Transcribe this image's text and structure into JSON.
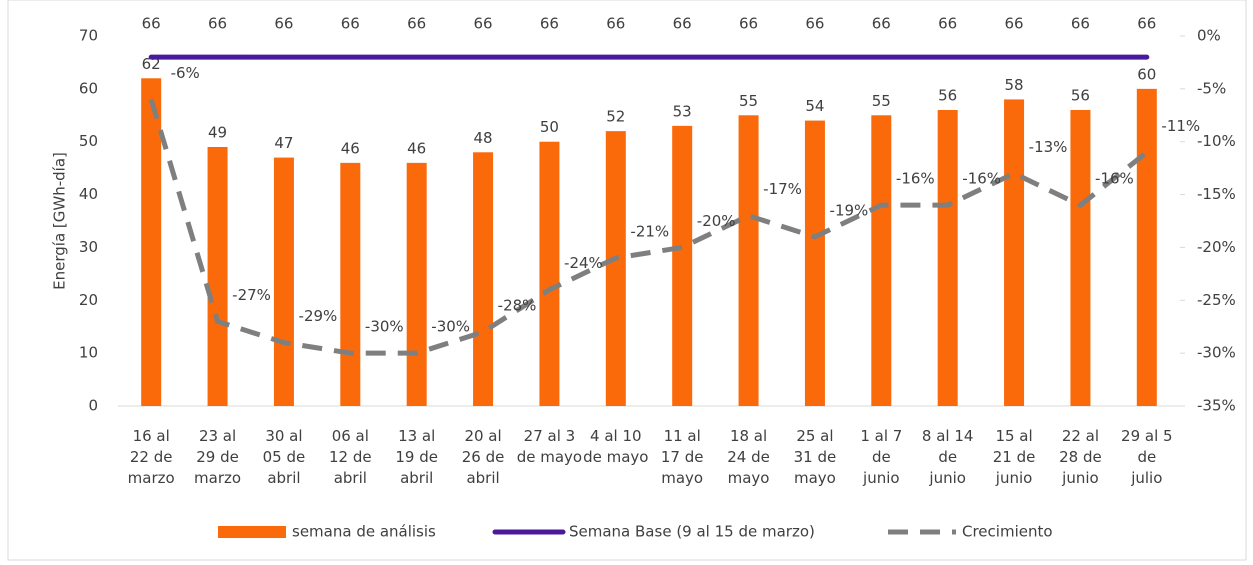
{
  "chart_data": {
    "type": "combo",
    "categories": [
      "16 al 22 de marzo",
      "23 al 29 de marzo",
      "30 al 05 de abril",
      "06 al 12 de abril",
      "13 al 19 de abril",
      "20 al 26 de abril",
      "27 al 3 de mayo",
      "4 al 10 de mayo",
      "11 al 17 de mayo",
      "18 al 24 de mayo",
      "25 al 31 de mayo",
      "1 al 7 de junio",
      "8 al 14 de junio",
      "15 al 21 de junio",
      "22 al 28 de junio",
      "29 al 5 de julio"
    ],
    "ylabel": "Energía [GWh-día]",
    "ylim": [
      0,
      70
    ],
    "yticks": [
      0,
      10,
      20,
      30,
      40,
      50,
      60,
      70
    ],
    "y2lim": [
      -35,
      0
    ],
    "y2ticks": [
      {
        "value": 0,
        "label": "0%"
      },
      {
        "value": -5,
        "label": "-5%"
      },
      {
        "value": -10,
        "label": "-10%"
      },
      {
        "value": -15,
        "label": "-15%"
      },
      {
        "value": -20,
        "label": "-20%"
      },
      {
        "value": -25,
        "label": "-25%"
      },
      {
        "value": -30,
        "label": "-30%"
      },
      {
        "value": -35,
        "label": "-35%"
      }
    ],
    "series": [
      {
        "name": "semana de análisis",
        "type": "bar",
        "color": "#fa6a0a",
        "values": [
          62,
          49,
          47,
          46,
          46,
          48,
          50,
          52,
          53,
          55,
          54,
          55,
          56,
          58,
          56,
          60
        ]
      },
      {
        "name": "Semana Base (9 al 15 de marzo)",
        "type": "line",
        "color": "#4a1a9c",
        "values": [
          66,
          66,
          66,
          66,
          66,
          66,
          66,
          66,
          66,
          66,
          66,
          66,
          66,
          66,
          66,
          66
        ]
      },
      {
        "name": "Crecimiento",
        "type": "dashed",
        "axis": "y2",
        "color": "#7f7f7f",
        "values": [
          -6,
          -27,
          -29,
          -30,
          -30,
          -28,
          -24,
          -21,
          -20,
          -17,
          -19,
          -16,
          -16,
          -13,
          -16,
          -11
        ],
        "value_labels": [
          "-6%",
          "-27%",
          "-29%",
          "-30%",
          "-30%",
          "-28%",
          "-24%",
          "-21%",
          "-20%",
          "-17%",
          "-19%",
          "-16%",
          "-16%",
          "-13%",
          "-16%",
          "-11%"
        ]
      }
    ]
  }
}
